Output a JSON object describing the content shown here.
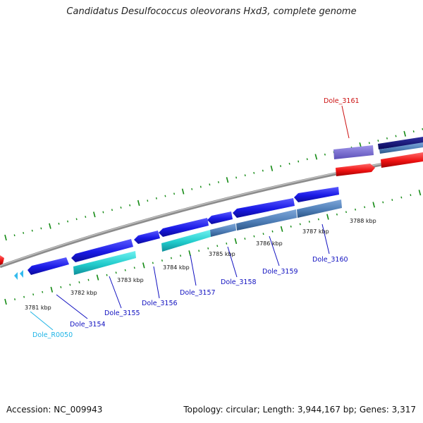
{
  "title": "Candidatus Desulfococcus oleovorans Hxd3, complete genome",
  "footer": {
    "accession": "Accession: NC_009943",
    "topology": "Topology: circular; Length: 3,944,167 bp; Genes: 3,317"
  },
  "colors": {
    "backbone": "#8c8c8c",
    "tick": "#138a13",
    "gene_blue": "#1a1ae6",
    "gene_cyan": "#22cccc",
    "gene_steel": "#4f7fb8",
    "gene_purple": "#7b6fd0",
    "gene_navy": "#12127a",
    "gene_red": "#ee1111",
    "gene_lightblue": "#33bbee",
    "label_blue": "#1010c0",
    "label_red": "#cc1111",
    "label_cyan": "#1eb4e6"
  },
  "scale_labels": [
    "3781 kbp",
    "3782 kbp",
    "3783 kbp",
    "3784 kbp",
    "3785 kbp",
    "3786 kbp",
    "3787 kbp",
    "3788 kbp"
  ],
  "gene_labels": [
    {
      "name": "Dole_R0050",
      "color": "cyan"
    },
    {
      "name": "Dole_3154",
      "color": "blue"
    },
    {
      "name": "Dole_3155",
      "color": "blue"
    },
    {
      "name": "Dole_3156",
      "color": "blue"
    },
    {
      "name": "Dole_3157",
      "color": "blue"
    },
    {
      "name": "Dole_3158",
      "color": "blue"
    },
    {
      "name": "Dole_3159",
      "color": "blue"
    },
    {
      "name": "Dole_3160",
      "color": "blue"
    },
    {
      "name": "Dole_3161",
      "color": "red"
    }
  ]
}
